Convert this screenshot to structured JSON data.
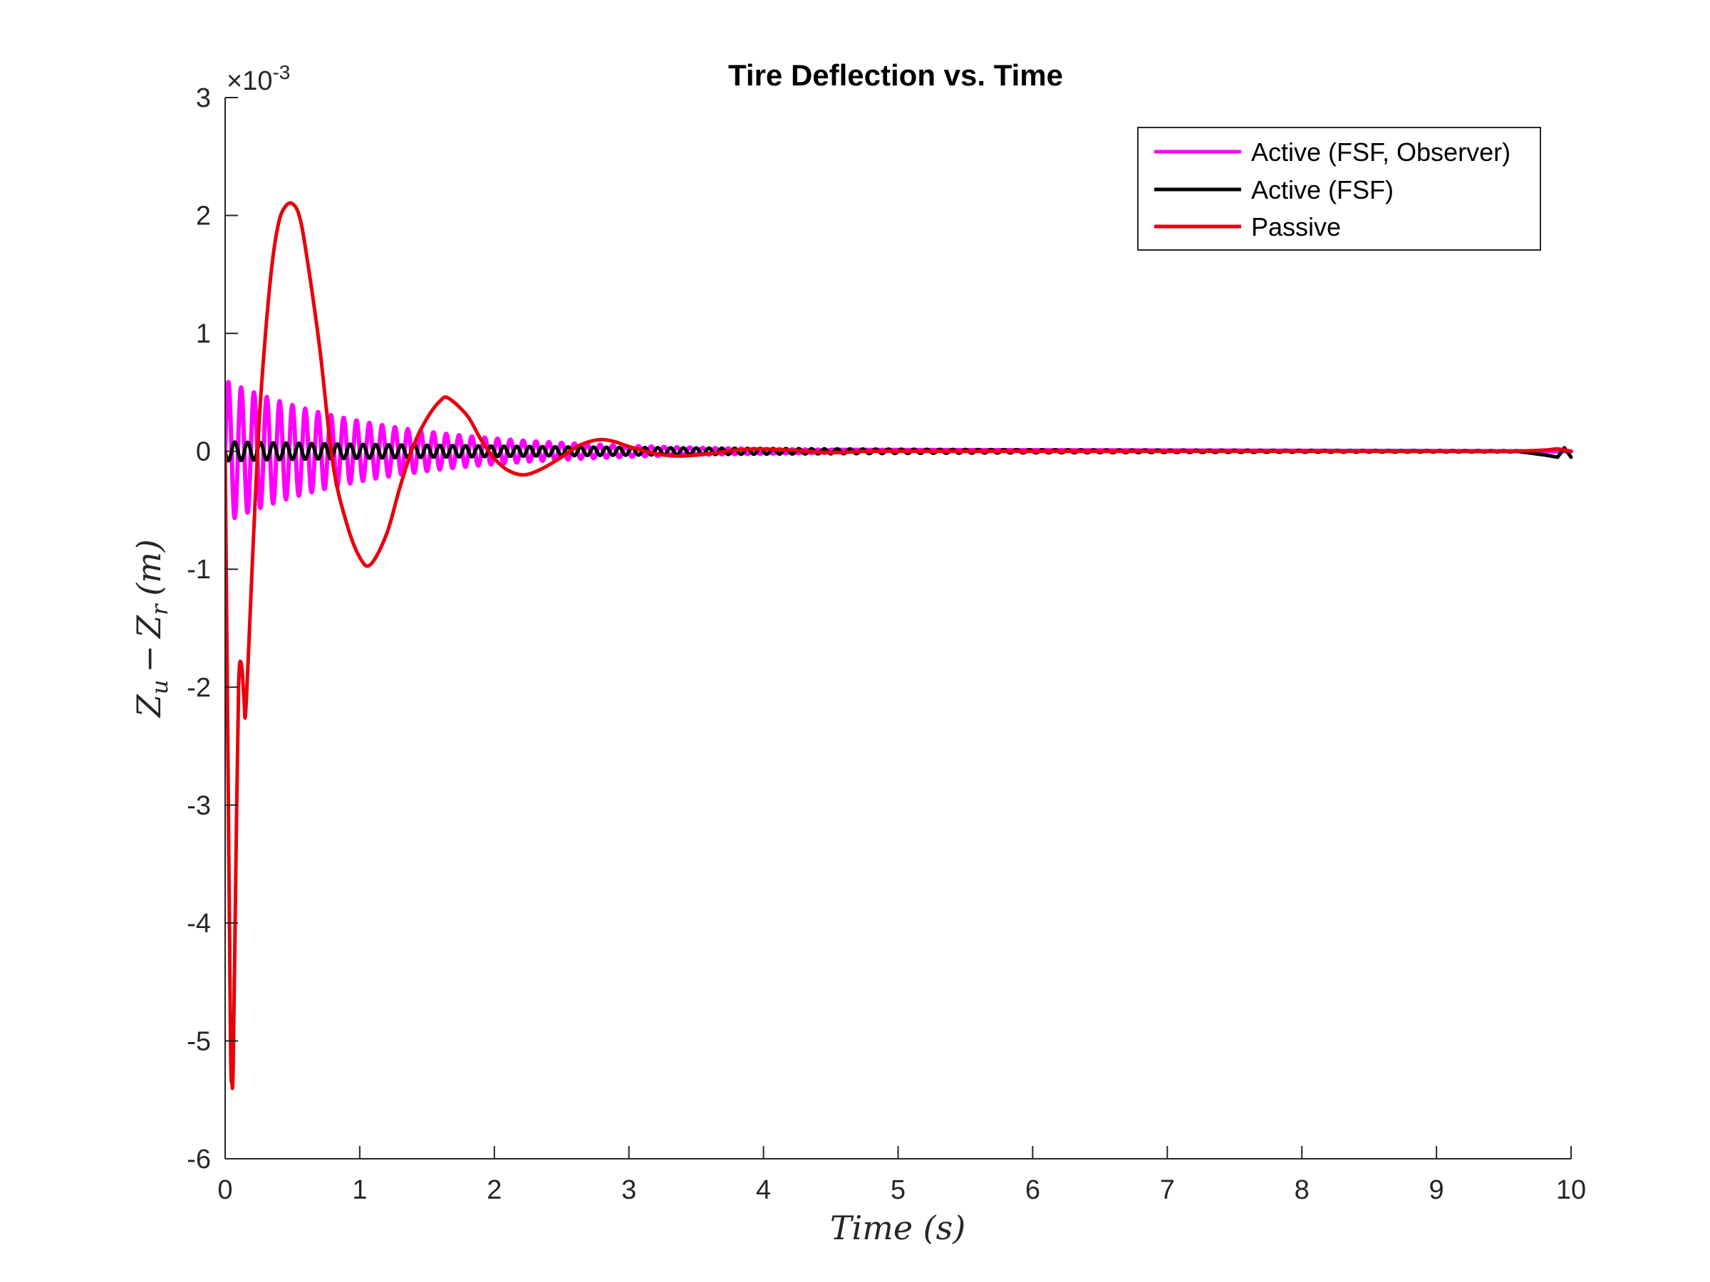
{
  "chart_data": {
    "type": "line",
    "title": "Tire Deflection vs. Time",
    "xlabel": "Time (s)",
    "ylabel": "Z_u − Z_r (m)",
    "ylabel_parts": {
      "z1": "Z",
      "sub1": "u",
      "minus": "−",
      "z2": "Z",
      "sub2": "r",
      "unit": "(m)"
    },
    "y_exponent": "×10",
    "y_exponent_power": "-3",
    "xlim": [
      0,
      10
    ],
    "ylim": [
      -6,
      3
    ],
    "y_scale_note": "values in units of 10^-3 m",
    "x_ticks": [
      "0",
      "1",
      "2",
      "3",
      "4",
      "5",
      "6",
      "7",
      "8",
      "9",
      "10"
    ],
    "y_ticks": [
      "3",
      "2",
      "1",
      "0",
      "-1",
      "-2",
      "-3",
      "-4",
      "-5",
      "-6"
    ],
    "grid": false,
    "legend_position": "top-right",
    "series": [
      {
        "name": "Active (FSF, Observer)",
        "color": "#ff00ff",
        "model": "damped_sine",
        "amplitude": 0.6,
        "frequency_hz": 10.5,
        "decay_per_s": 0.85,
        "t_end": 4.5
      },
      {
        "name": "Active (FSF)",
        "color": "#000000",
        "model": "damped_sine",
        "amplitude": -0.08,
        "frequency_hz": 10.5,
        "decay_per_s": 0.3,
        "t_end": 10,
        "end_wiggle": [
          [
            9.6,
            0.0
          ],
          [
            9.8,
            -0.03
          ],
          [
            9.9,
            -0.05
          ],
          [
            9.95,
            0.03
          ],
          [
            10.0,
            -0.05
          ]
        ]
      },
      {
        "name": "Passive",
        "color": "#e8000b",
        "points": [
          [
            0.0,
            0.0
          ],
          [
            0.02,
            -2.5
          ],
          [
            0.04,
            -5.0
          ],
          [
            0.05,
            -5.35
          ],
          [
            0.06,
            -5.2
          ],
          [
            0.08,
            -3.5
          ],
          [
            0.1,
            -2.0
          ],
          [
            0.12,
            -1.8
          ],
          [
            0.14,
            -2.1
          ],
          [
            0.15,
            -2.25
          ],
          [
            0.17,
            -1.8
          ],
          [
            0.2,
            -1.0
          ],
          [
            0.25,
            0.2
          ],
          [
            0.3,
            1.0
          ],
          [
            0.35,
            1.6
          ],
          [
            0.4,
            1.95
          ],
          [
            0.45,
            2.08
          ],
          [
            0.5,
            2.1
          ],
          [
            0.55,
            2.0
          ],
          [
            0.6,
            1.7
          ],
          [
            0.7,
            0.9
          ],
          [
            0.8,
            -0.1
          ],
          [
            0.9,
            -0.6
          ],
          [
            1.0,
            -0.9
          ],
          [
            1.08,
            -0.96
          ],
          [
            1.2,
            -0.7
          ],
          [
            1.3,
            -0.3
          ],
          [
            1.4,
            0.05
          ],
          [
            1.5,
            0.28
          ],
          [
            1.6,
            0.43
          ],
          [
            1.66,
            0.45
          ],
          [
            1.8,
            0.3
          ],
          [
            1.9,
            0.1
          ],
          [
            2.0,
            -0.06
          ],
          [
            2.1,
            -0.16
          ],
          [
            2.22,
            -0.2
          ],
          [
            2.35,
            -0.15
          ],
          [
            2.5,
            -0.05
          ],
          [
            2.6,
            0.03
          ],
          [
            2.7,
            0.08
          ],
          [
            2.8,
            0.1
          ],
          [
            2.9,
            0.08
          ],
          [
            3.0,
            0.04
          ],
          [
            3.2,
            -0.02
          ],
          [
            3.38,
            -0.04
          ],
          [
            3.6,
            -0.02
          ],
          [
            3.8,
            0.01
          ],
          [
            3.95,
            0.02
          ],
          [
            4.2,
            0.01
          ],
          [
            4.5,
            -0.01
          ],
          [
            4.8,
            0.0
          ],
          [
            5.2,
            0.0
          ],
          [
            6.0,
            0.0
          ],
          [
            7.0,
            0.0
          ],
          [
            8.0,
            0.0
          ],
          [
            9.0,
            0.0
          ],
          [
            9.5,
            0.0
          ],
          [
            9.8,
            0.01
          ],
          [
            9.9,
            0.02
          ],
          [
            10.0,
            0.0
          ]
        ]
      }
    ]
  }
}
